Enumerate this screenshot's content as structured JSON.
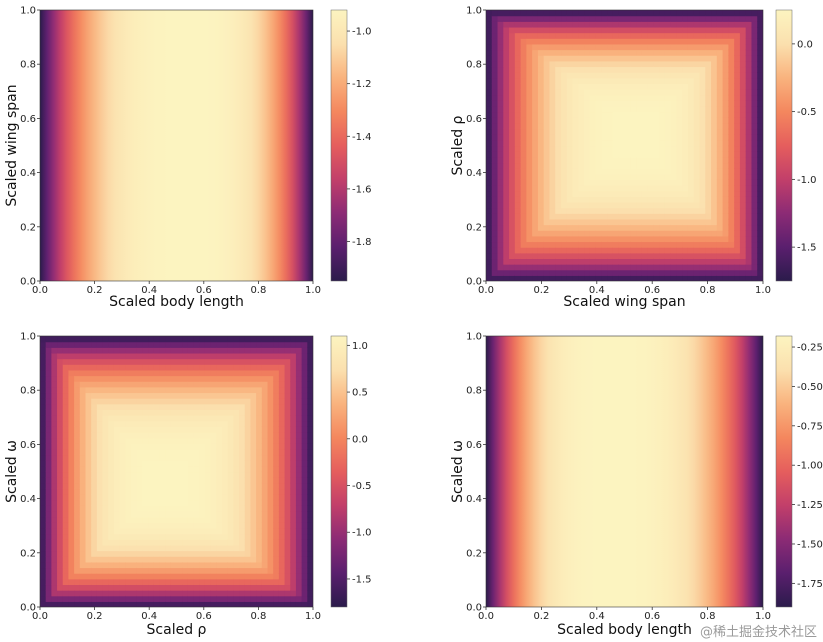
{
  "watermark": "@稀土掘金技术社区",
  "colormap": [
    "#2b1b4b",
    "#5a1f6e",
    "#8c2b75",
    "#c23f6a",
    "#e55e5d",
    "#f4875e",
    "#f9b37e",
    "#fbe0ae",
    "#fcf4c0"
  ],
  "chart_data": [
    {
      "type": "heatmap",
      "title": "",
      "xlabel": "Scaled body length",
      "ylabel": "Scaled wing span",
      "xlim": [
        0,
        1
      ],
      "ylim": [
        0,
        1
      ],
      "x_ticks": [
        "0.0",
        "0.2",
        "0.4",
        "0.6",
        "0.8",
        "1.0"
      ],
      "y_ticks": [
        "0.0",
        "0.2",
        "0.4",
        "0.6",
        "0.8",
        "1.0"
      ],
      "pattern": "vertical-bands",
      "peak_center": 0.55,
      "value_range": [
        -1.95,
        -0.92
      ],
      "colorbar_ticks": [
        "-1.0",
        "-1.2",
        "-1.4",
        "-1.6",
        "-1.8"
      ],
      "colorbar_tick_values": [
        -1.0,
        -1.2,
        -1.4,
        -1.6,
        -1.8
      ]
    },
    {
      "type": "heatmap",
      "title": "",
      "xlabel": "Scaled wing span",
      "ylabel": "Scaled ρ",
      "xlim": [
        0,
        1
      ],
      "ylim": [
        0,
        1
      ],
      "x_ticks": [
        "0.0",
        "0.2",
        "0.4",
        "0.6",
        "0.8",
        "1.0"
      ],
      "y_ticks": [
        "0.0",
        "0.2",
        "0.4",
        "0.6",
        "0.8",
        "1.0"
      ],
      "pattern": "radial-center",
      "peak_center": [
        0.55,
        0.55
      ],
      "value_range": [
        -1.75,
        0.25
      ],
      "colorbar_ticks": [
        "0.0",
        "-0.5",
        "-1.0",
        "-1.5"
      ],
      "colorbar_tick_values": [
        0.0,
        -0.5,
        -1.0,
        -1.5
      ]
    },
    {
      "type": "heatmap",
      "title": "",
      "xlabel": "Scaled ρ",
      "ylabel": "Scaled ω",
      "xlim": [
        0,
        1
      ],
      "ylim": [
        0,
        1
      ],
      "x_ticks": [
        "0.0",
        "0.2",
        "0.4",
        "0.6",
        "0.8",
        "1.0"
      ],
      "y_ticks": [
        "0.0",
        "0.2",
        "0.4",
        "0.6",
        "0.8",
        "1.0"
      ],
      "pattern": "radial-center",
      "peak_center": [
        0.45,
        0.45
      ],
      "value_range": [
        -1.8,
        1.1
      ],
      "colorbar_ticks": [
        "1.0",
        "0.5",
        "0.0",
        "-0.5",
        "-1.0",
        "-1.5"
      ],
      "colorbar_tick_values": [
        1.0,
        0.5,
        0.0,
        -0.5,
        -1.0,
        -1.5
      ]
    },
    {
      "type": "heatmap",
      "title": "",
      "xlabel": "Scaled body length",
      "ylabel": "Scaled ω",
      "xlim": [
        0,
        1
      ],
      "ylim": [
        0,
        1
      ],
      "x_ticks": [
        "0.0",
        "0.2",
        "0.4",
        "0.6",
        "0.8",
        "1.0"
      ],
      "y_ticks": [
        "0.0",
        "0.2",
        "0.4",
        "0.6",
        "0.8",
        "1.0"
      ],
      "pattern": "vertical-bands",
      "peak_center": 0.45,
      "value_range": [
        -1.9,
        -0.18
      ],
      "colorbar_ticks": [
        "-0.25",
        "-0.50",
        "-0.75",
        "-1.00",
        "-1.25",
        "-1.50",
        "-1.75"
      ],
      "colorbar_tick_values": [
        -0.25,
        -0.5,
        -0.75,
        -1.0,
        -1.25,
        -1.5,
        -1.75
      ]
    }
  ]
}
